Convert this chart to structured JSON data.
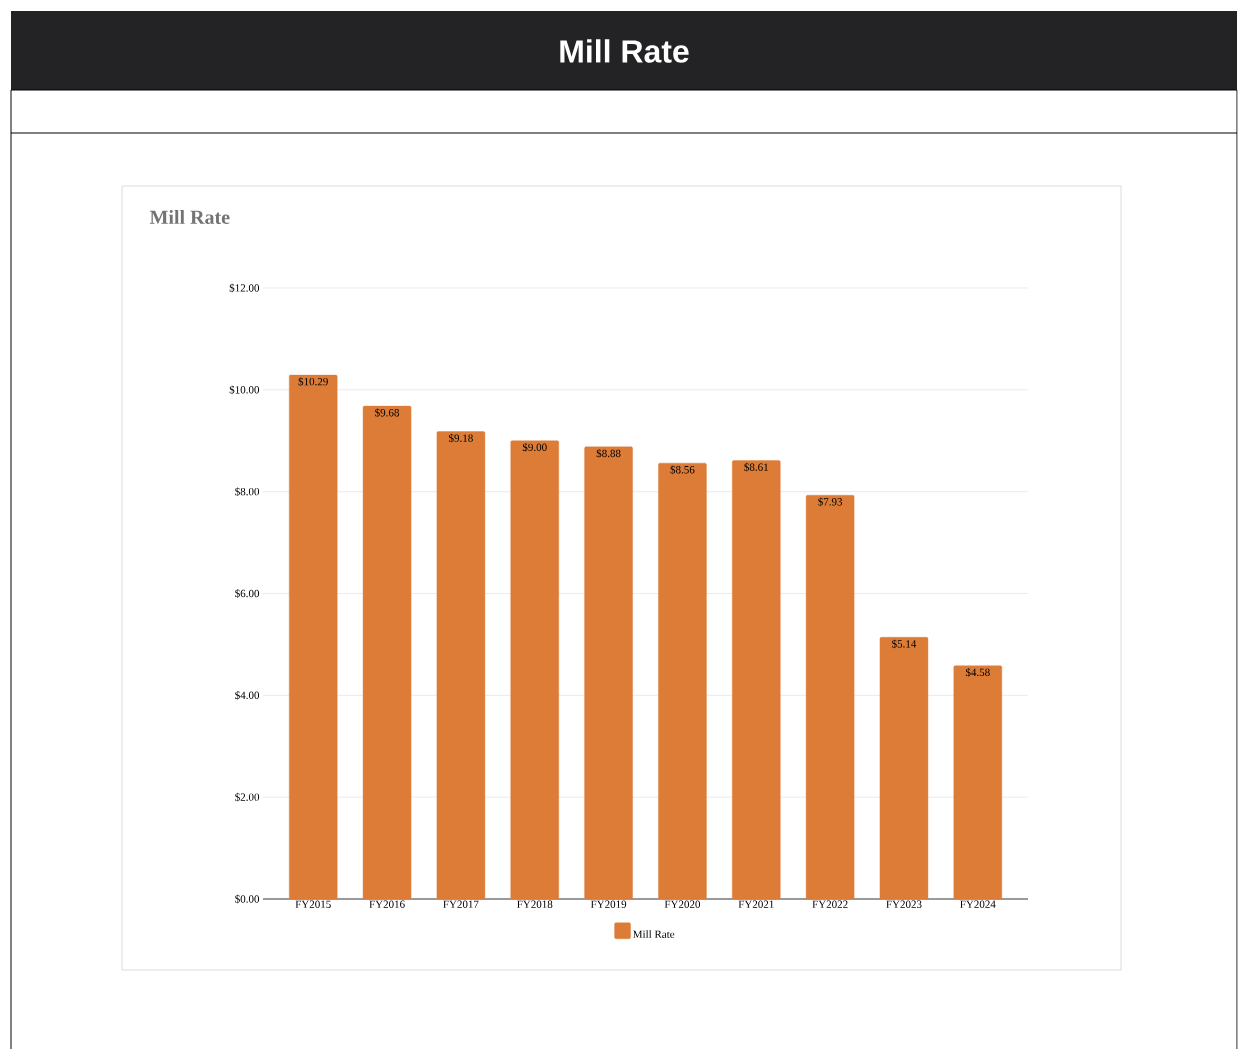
{
  "chart_data": {
    "type": "bar",
    "title": "Mill Rate",
    "subtitle": "Mill Rate",
    "categories": [
      "FY2015",
      "FY2016",
      "FY2017",
      "FY2018",
      "FY2019",
      "FY2020",
      "FY2021",
      "FY2022",
      "FY2023",
      "FY2024"
    ],
    "series": [
      {
        "name": "Mill Rate",
        "color": "#dc7c37",
        "values": [
          10.29,
          9.68,
          9.18,
          9.0,
          8.88,
          8.56,
          8.61,
          7.93,
          5.14,
          4.58
        ],
        "value_labels": [
          "$10.29",
          "$9.68",
          "$9.18",
          "$9.00",
          "$8.88",
          "$8.56",
          "$8.61",
          "$7.93",
          "$5.14",
          "$4.58"
        ]
      }
    ],
    "ylim": [
      0,
      12
    ],
    "yticks": [
      {
        "value": 0,
        "label": "$0.00"
      },
      {
        "value": 2,
        "label": "$2.00"
      },
      {
        "value": 4,
        "label": "$4.00"
      },
      {
        "value": 6,
        "label": "$6.00"
      },
      {
        "value": 8,
        "label": "$8.00"
      },
      {
        "value": 10,
        "label": "$10.00"
      },
      {
        "value": 12,
        "label": "$12.00"
      }
    ],
    "grid": "y",
    "legend": "bottom"
  }
}
